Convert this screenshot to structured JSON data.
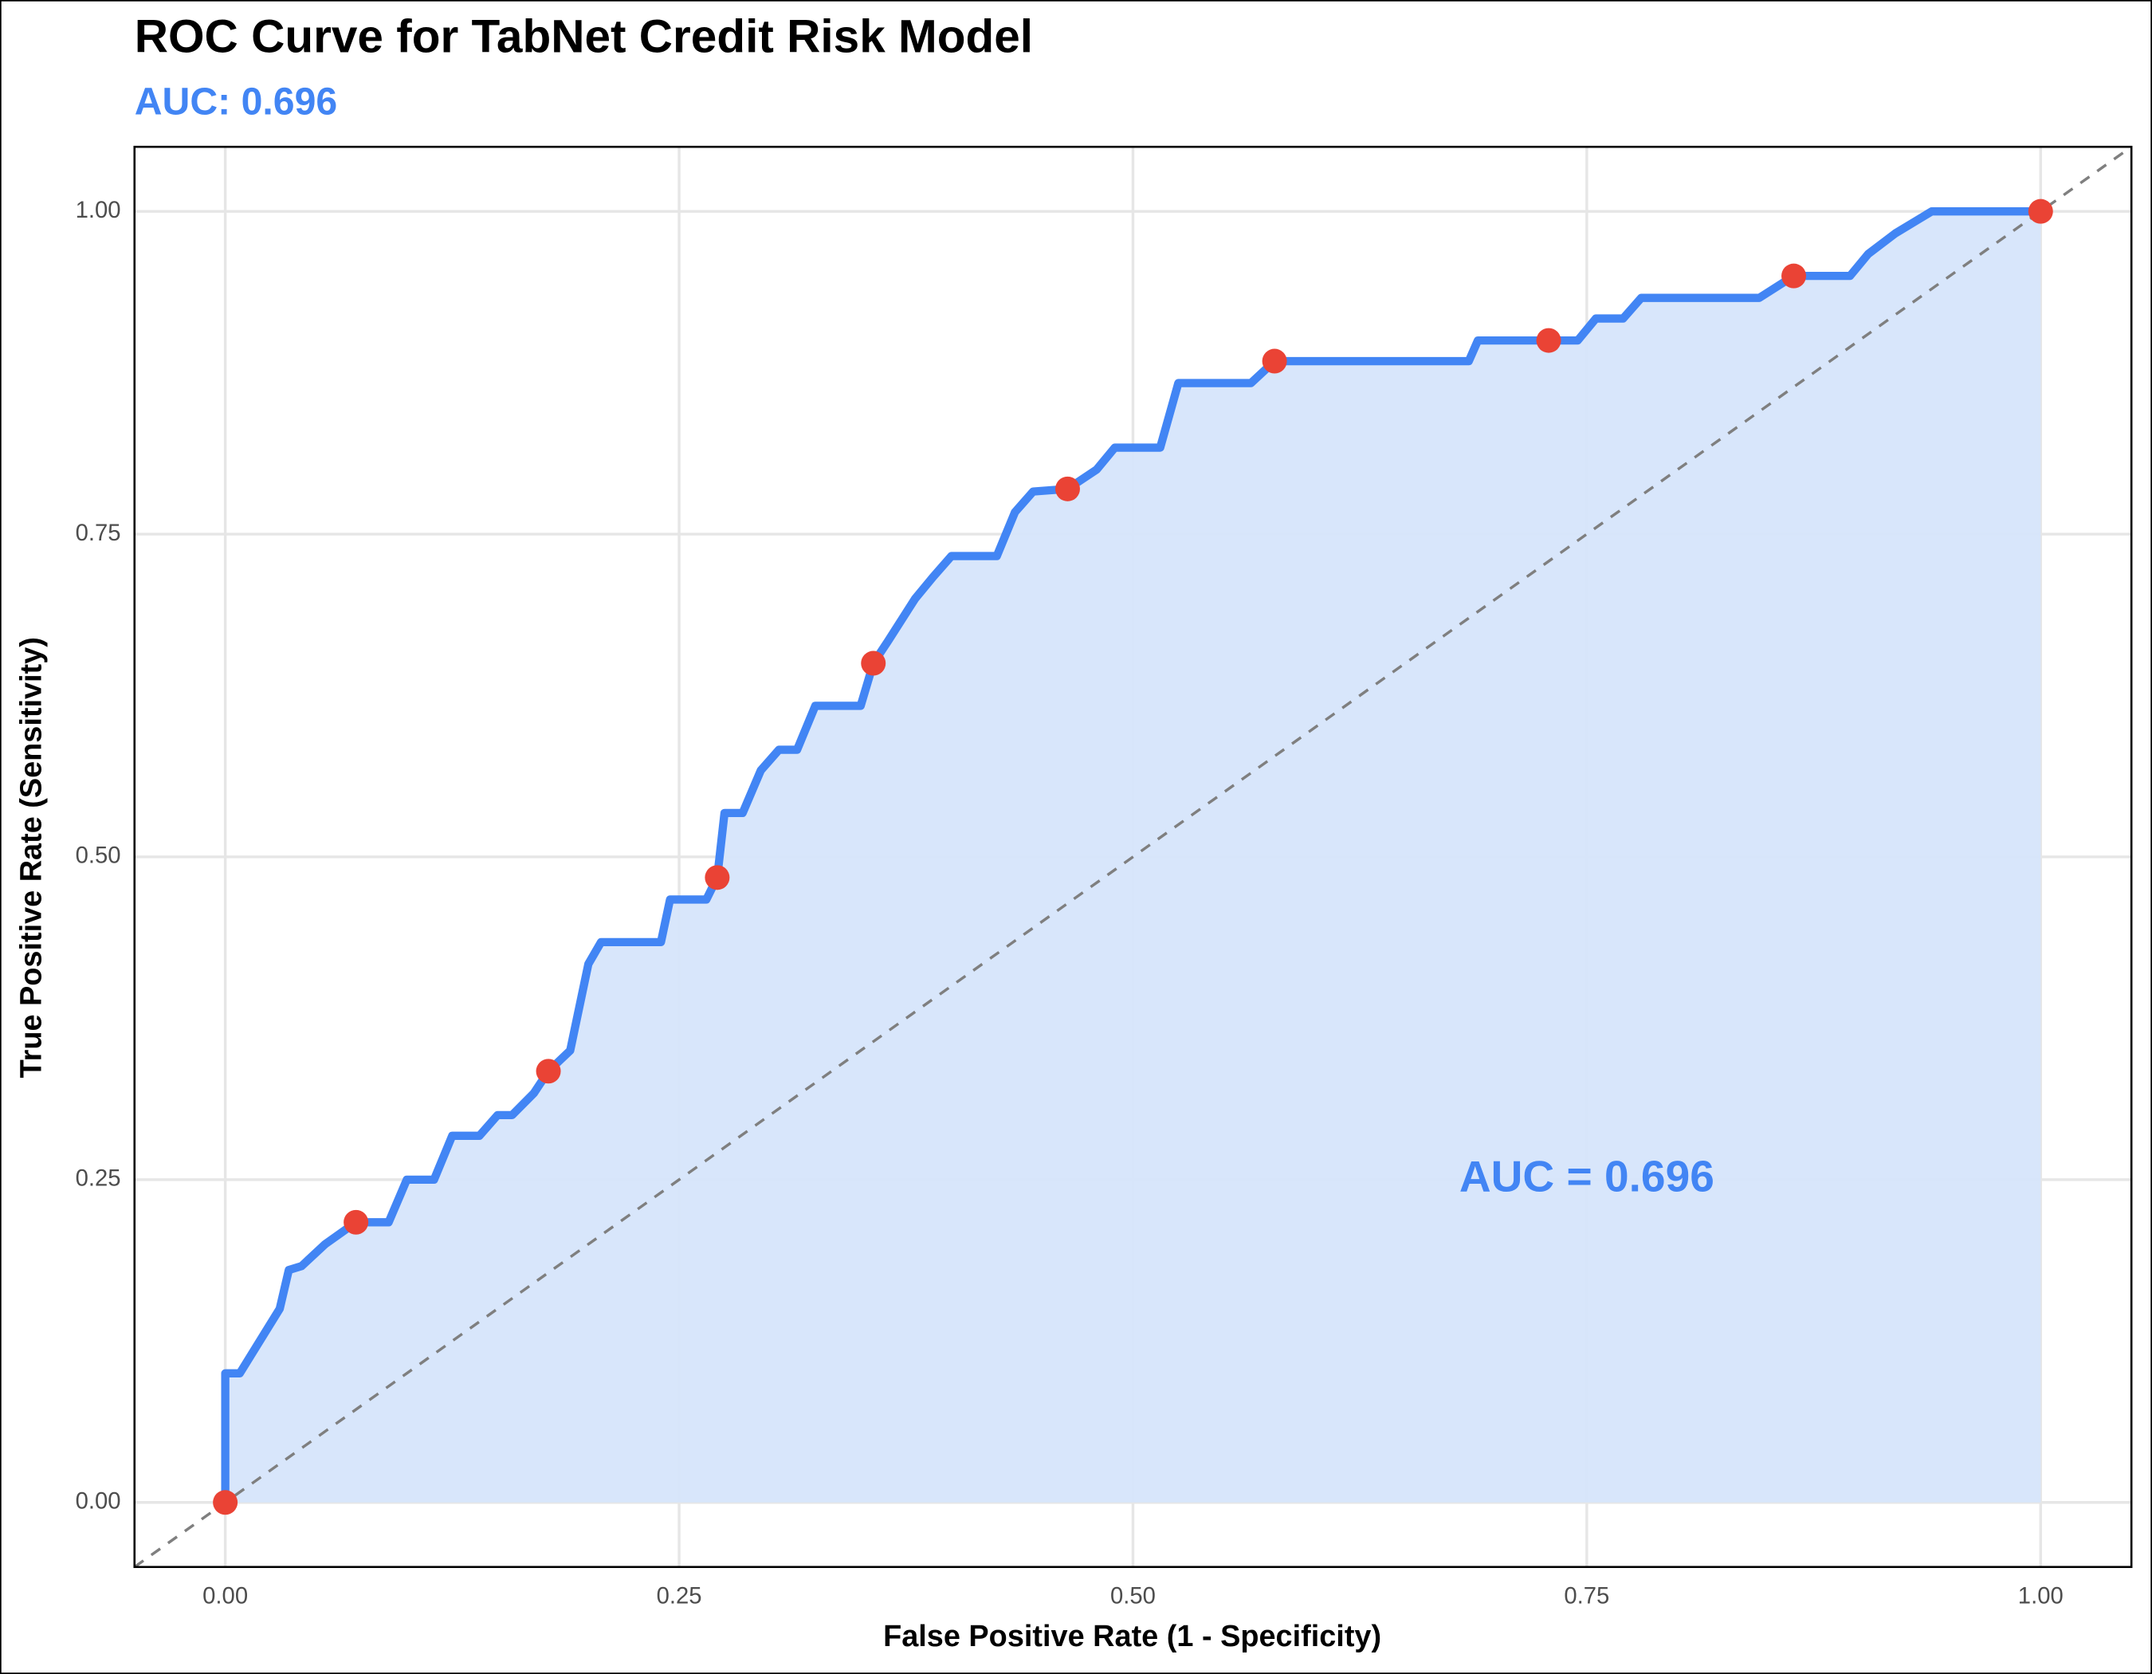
{
  "chart_data": {
    "type": "roc",
    "title": "ROC Curve for TabNet Credit Risk Model",
    "subtitle": "AUC: 0.696",
    "annotation": "AUC = 0.696",
    "x_label": "False Positive Rate (1 - Specificity)",
    "y_label": "True Positive Rate (Sensitivity)",
    "xlim": [
      -0.05,
      1.05
    ],
    "ylim": [
      -0.05,
      1.05
    ],
    "xticks": [
      {
        "value": 0,
        "label": "0.00"
      },
      {
        "value": 0.25,
        "label": "0.25"
      },
      {
        "value": 0.5,
        "label": "0.50"
      },
      {
        "value": 0.75,
        "label": "0.75"
      },
      {
        "value": 1,
        "label": "1.00"
      }
    ],
    "yticks": [
      {
        "value": 0,
        "label": "0.00"
      },
      {
        "value": 0.25,
        "label": "0.25"
      },
      {
        "value": 0.5,
        "label": "0.50"
      },
      {
        "value": 0.75,
        "label": "0.75"
      },
      {
        "value": 1,
        "label": "1.00"
      }
    ],
    "grid": true,
    "color": "#4285f4",
    "fill_color": "#d6e5fb",
    "point_color": "#ea4335",
    "reference_color": "#7f7f7f",
    "curve": {
      "x": [
        0,
        0,
        0.008,
        0.03,
        0.035,
        0.042,
        0.055,
        0.072,
        0.09,
        0.1,
        0.115,
        0.125,
        0.14,
        0.15,
        0.158,
        0.17,
        0.178,
        0.19,
        0.2,
        0.207,
        0.24,
        0.245,
        0.265,
        0.271,
        0.275,
        0.285,
        0.295,
        0.305,
        0.315,
        0.325,
        0.35,
        0.357,
        0.365,
        0.38,
        0.39,
        0.4,
        0.425,
        0.435,
        0.445,
        0.464,
        0.48,
        0.49,
        0.515,
        0.525,
        0.565,
        0.578,
        0.685,
        0.69,
        0.729,
        0.745,
        0.755,
        0.77,
        0.78,
        0.845,
        0.864,
        0.895,
        0.905,
        0.92,
        0.94,
        1
      ],
      "y": [
        0,
        0.1,
        0.1,
        0.15,
        0.18,
        0.183,
        0.2,
        0.217,
        0.217,
        0.25,
        0.25,
        0.284,
        0.284,
        0.3,
        0.3,
        0.317,
        0.334,
        0.35,
        0.417,
        0.434,
        0.434,
        0.467,
        0.467,
        0.484,
        0.534,
        0.534,
        0.567,
        0.583,
        0.583,
        0.617,
        0.617,
        0.65,
        0.667,
        0.7,
        0.717,
        0.733,
        0.733,
        0.767,
        0.783,
        0.785,
        0.8,
        0.817,
        0.817,
        0.867,
        0.867,
        0.884,
        0.884,
        0.9,
        0.9,
        0.9,
        0.917,
        0.917,
        0.933,
        0.933,
        0.95,
        0.95,
        0.967,
        0.983,
        1,
        1
      ]
    },
    "points": {
      "x": [
        0,
        0.072,
        0.178,
        0.271,
        0.357,
        0.464,
        0.578,
        0.729,
        0.864,
        1
      ],
      "y": [
        0,
        0.217,
        0.334,
        0.484,
        0.65,
        0.785,
        0.884,
        0.9,
        0.95,
        1
      ]
    }
  }
}
